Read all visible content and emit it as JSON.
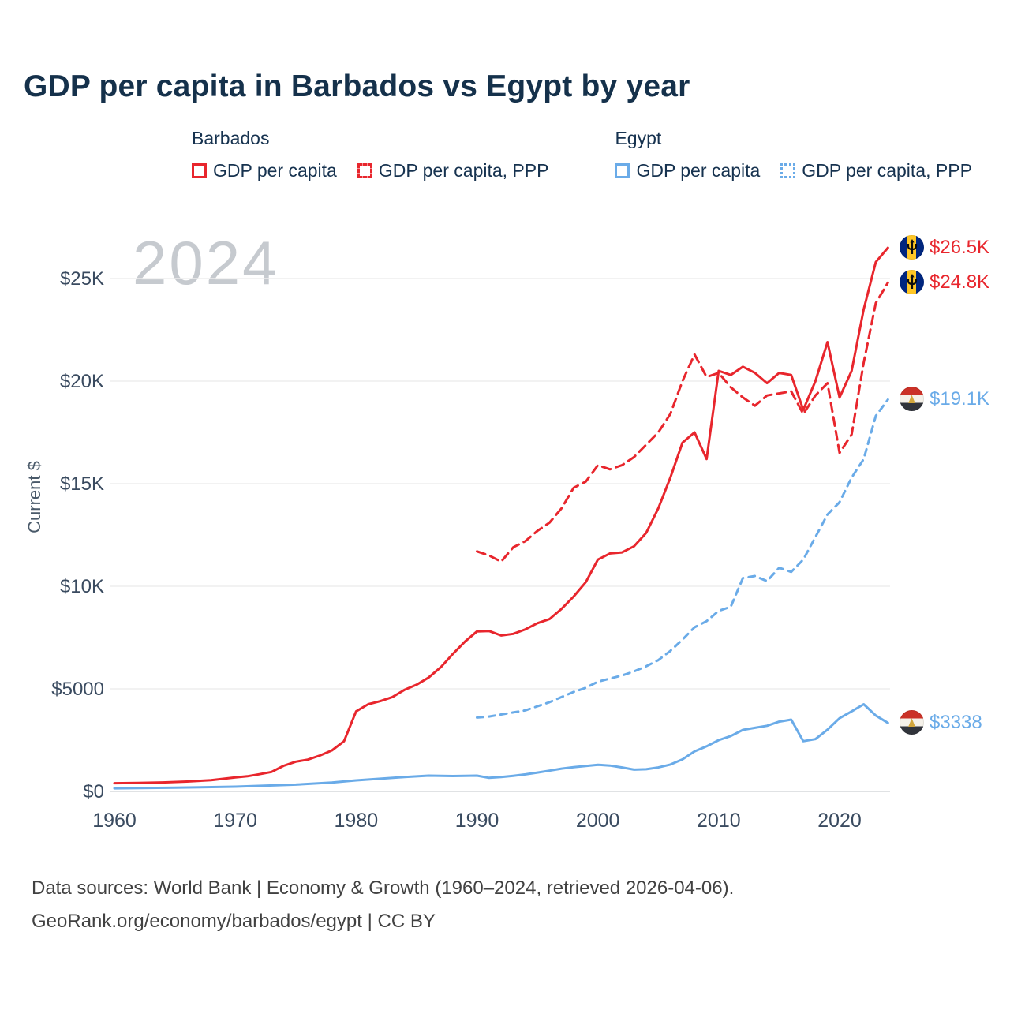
{
  "title": "GDP per capita in Barbados vs Egypt by year",
  "watermark": "2024",
  "legend": {
    "groups": [
      {
        "name": "Barbados",
        "items": [
          {
            "label": "GDP per capita",
            "style": "solid",
            "color": "#e8262d"
          },
          {
            "label": "GDP per capita, PPP",
            "style": "dashed",
            "color": "#e8262d"
          }
        ]
      },
      {
        "name": "Egypt",
        "items": [
          {
            "label": "GDP per capita",
            "style": "solid",
            "color": "#6aabe8"
          },
          {
            "label": "GDP per capita, PPP",
            "style": "dotted",
            "color": "#6aabe8"
          }
        ]
      }
    ]
  },
  "footer": {
    "line1": "Data sources: World Bank | Economy & Growth (1960–2024, retrieved 2026-04-06).",
    "line2": "GeoRank.org/economy/barbados/egypt | CC BY"
  },
  "chart_data": {
    "type": "line",
    "title": "GDP per capita in Barbados vs Egypt by year",
    "xlabel": "",
    "ylabel": "Current $",
    "xlim": [
      1959,
      2025
    ],
    "ylim": [
      0,
      27500
    ],
    "grid": "horizontal",
    "legend_position": "top",
    "x_ticks": [
      1960,
      1970,
      1980,
      1990,
      2000,
      2010,
      2020
    ],
    "y_ticks": [
      {
        "value": 0,
        "label": "$0"
      },
      {
        "value": 5000,
        "label": "$5000"
      },
      {
        "value": 10000,
        "label": "$10K"
      },
      {
        "value": 15000,
        "label": "$15K"
      },
      {
        "value": 20000,
        "label": "$20K"
      },
      {
        "value": 25000,
        "label": "$25K"
      }
    ],
    "series": [
      {
        "name": "Egypt GDP per capita, PPP",
        "country": "Egypt",
        "color": "#6aabe8",
        "dash": "dashed",
        "flag": "egypt",
        "end_label": "$19.1K",
        "points": [
          [
            1990,
            3600
          ],
          [
            1991,
            3650
          ],
          [
            1992,
            3750
          ],
          [
            1993,
            3850
          ],
          [
            1994,
            3950
          ],
          [
            1995,
            4150
          ],
          [
            1996,
            4350
          ],
          [
            1997,
            4600
          ],
          [
            1998,
            4850
          ],
          [
            1999,
            5050
          ],
          [
            2000,
            5350
          ],
          [
            2001,
            5500
          ],
          [
            2002,
            5650
          ],
          [
            2003,
            5850
          ],
          [
            2004,
            6100
          ],
          [
            2005,
            6400
          ],
          [
            2006,
            6850
          ],
          [
            2007,
            7400
          ],
          [
            2008,
            8000
          ],
          [
            2009,
            8300
          ],
          [
            2010,
            8800
          ],
          [
            2011,
            9000
          ],
          [
            2012,
            10400
          ],
          [
            2013,
            10500
          ],
          [
            2014,
            10250
          ],
          [
            2015,
            10900
          ],
          [
            2016,
            10700
          ],
          [
            2017,
            11300
          ],
          [
            2018,
            12400
          ],
          [
            2019,
            13500
          ],
          [
            2020,
            14100
          ],
          [
            2021,
            15300
          ],
          [
            2022,
            16200
          ],
          [
            2023,
            18300
          ],
          [
            2024,
            19100
          ]
        ]
      },
      {
        "name": "Egypt GDP per capita",
        "country": "Egypt",
        "color": "#6aabe8",
        "dash": "solid",
        "flag": "egypt",
        "end_label": "$3338",
        "points": [
          [
            1960,
            150
          ],
          [
            1965,
            180
          ],
          [
            1970,
            230
          ],
          [
            1975,
            330
          ],
          [
            1978,
            430
          ],
          [
            1980,
            540
          ],
          [
            1982,
            620
          ],
          [
            1984,
            700
          ],
          [
            1986,
            770
          ],
          [
            1988,
            750
          ],
          [
            1990,
            770
          ],
          [
            1991,
            660
          ],
          [
            1992,
            700
          ],
          [
            1993,
            760
          ],
          [
            1994,
            830
          ],
          [
            1995,
            920
          ],
          [
            1996,
            1010
          ],
          [
            1997,
            1110
          ],
          [
            1998,
            1180
          ],
          [
            1999,
            1240
          ],
          [
            2000,
            1300
          ],
          [
            2001,
            1260
          ],
          [
            2002,
            1170
          ],
          [
            2003,
            1060
          ],
          [
            2004,
            1080
          ],
          [
            2005,
            1170
          ],
          [
            2006,
            1310
          ],
          [
            2007,
            1560
          ],
          [
            2008,
            1950
          ],
          [
            2009,
            2200
          ],
          [
            2010,
            2500
          ],
          [
            2011,
            2700
          ],
          [
            2012,
            3000
          ],
          [
            2013,
            3100
          ],
          [
            2014,
            3200
          ],
          [
            2015,
            3400
          ],
          [
            2016,
            3500
          ],
          [
            2017,
            2450
          ],
          [
            2018,
            2550
          ],
          [
            2019,
            3010
          ],
          [
            2020,
            3570
          ],
          [
            2021,
            3900
          ],
          [
            2022,
            4250
          ],
          [
            2023,
            3700
          ],
          [
            2024,
            3338
          ]
        ]
      },
      {
        "name": "Barbados GDP per capita, PPP",
        "country": "Barbados",
        "color": "#e8262d",
        "dash": "dashed",
        "flag": "barbados",
        "end_label": "$24.8K",
        "points": [
          [
            1990,
            11700
          ],
          [
            1991,
            11500
          ],
          [
            1992,
            11200
          ],
          [
            1993,
            11900
          ],
          [
            1994,
            12200
          ],
          [
            1995,
            12700
          ],
          [
            1996,
            13100
          ],
          [
            1997,
            13800
          ],
          [
            1998,
            14800
          ],
          [
            1999,
            15100
          ],
          [
            2000,
            15900
          ],
          [
            2001,
            15700
          ],
          [
            2002,
            15900
          ],
          [
            2003,
            16300
          ],
          [
            2004,
            16900
          ],
          [
            2005,
            17500
          ],
          [
            2006,
            18400
          ],
          [
            2007,
            20000
          ],
          [
            2008,
            21300
          ],
          [
            2009,
            20200
          ],
          [
            2010,
            20400
          ],
          [
            2011,
            19700
          ],
          [
            2012,
            19200
          ],
          [
            2013,
            18800
          ],
          [
            2014,
            19300
          ],
          [
            2015,
            19400
          ],
          [
            2016,
            19500
          ],
          [
            2017,
            18400
          ],
          [
            2018,
            19300
          ],
          [
            2019,
            19900
          ],
          [
            2020,
            16500
          ],
          [
            2021,
            17400
          ],
          [
            2022,
            20900
          ],
          [
            2023,
            23800
          ],
          [
            2024,
            24800
          ]
        ]
      },
      {
        "name": "Barbados GDP per capita",
        "country": "Barbados",
        "color": "#e8262d",
        "dash": "solid",
        "flag": "barbados",
        "end_label": "$26.5K",
        "points": [
          [
            1960,
            400
          ],
          [
            1962,
            415
          ],
          [
            1964,
            440
          ],
          [
            1966,
            480
          ],
          [
            1968,
            545
          ],
          [
            1970,
            680
          ],
          [
            1971,
            740
          ],
          [
            1972,
            840
          ],
          [
            1973,
            950
          ],
          [
            1974,
            1250
          ],
          [
            1975,
            1450
          ],
          [
            1976,
            1550
          ],
          [
            1977,
            1750
          ],
          [
            1978,
            2000
          ],
          [
            1979,
            2450
          ],
          [
            1980,
            3900
          ],
          [
            1981,
            4250
          ],
          [
            1982,
            4400
          ],
          [
            1983,
            4600
          ],
          [
            1984,
            4950
          ],
          [
            1985,
            5200
          ],
          [
            1986,
            5550
          ],
          [
            1987,
            6050
          ],
          [
            1988,
            6700
          ],
          [
            1989,
            7300
          ],
          [
            1990,
            7800
          ],
          [
            1991,
            7820
          ],
          [
            1992,
            7600
          ],
          [
            1993,
            7680
          ],
          [
            1994,
            7900
          ],
          [
            1995,
            8200
          ],
          [
            1996,
            8400
          ],
          [
            1997,
            8900
          ],
          [
            1998,
            9500
          ],
          [
            1999,
            10200
          ],
          [
            2000,
            11300
          ],
          [
            2001,
            11600
          ],
          [
            2002,
            11650
          ],
          [
            2003,
            11950
          ],
          [
            2004,
            12600
          ],
          [
            2005,
            13800
          ],
          [
            2006,
            15300
          ],
          [
            2007,
            17000
          ],
          [
            2008,
            17500
          ],
          [
            2009,
            16200
          ],
          [
            2010,
            20500
          ],
          [
            2011,
            20300
          ],
          [
            2012,
            20700
          ],
          [
            2013,
            20400
          ],
          [
            2014,
            19900
          ],
          [
            2015,
            20400
          ],
          [
            2016,
            20300
          ],
          [
            2017,
            18600
          ],
          [
            2018,
            20000
          ],
          [
            2019,
            21900
          ],
          [
            2020,
            19200
          ],
          [
            2021,
            20500
          ],
          [
            2022,
            23500
          ],
          [
            2023,
            25800
          ],
          [
            2024,
            26500
          ]
        ]
      }
    ]
  }
}
